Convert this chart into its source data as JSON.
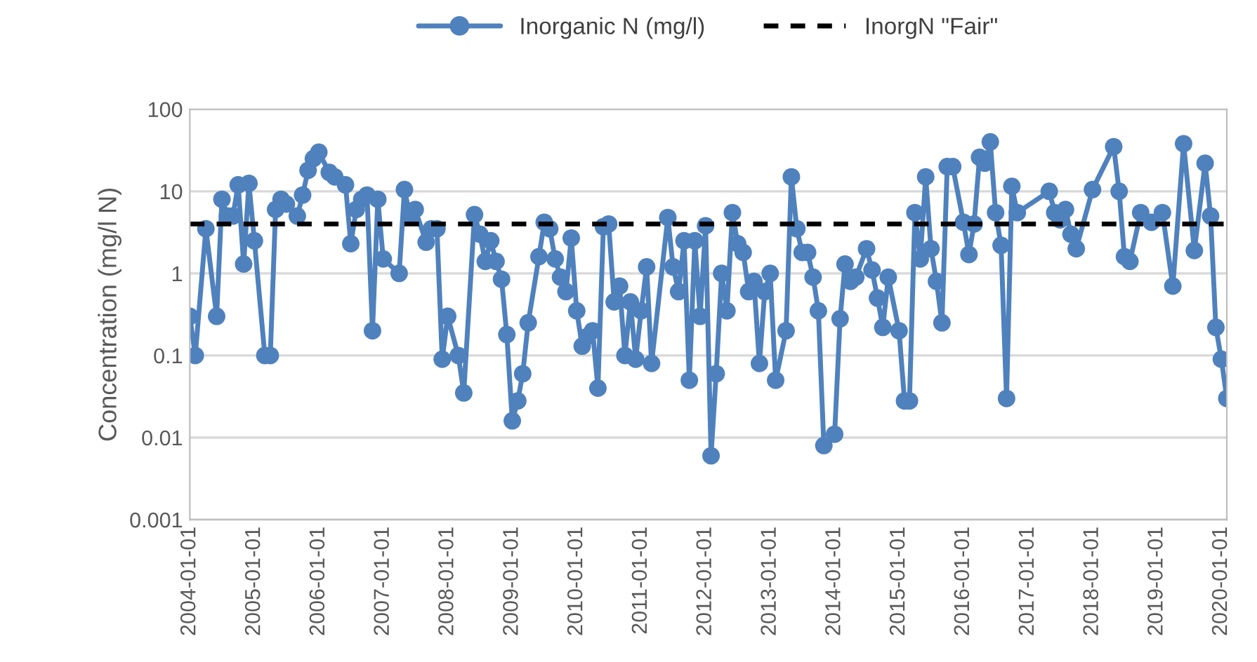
{
  "chart_data": {
    "type": "line",
    "ylabel": "Concentration (mg/l N)",
    "x": [
      "2004-01",
      "2004-02",
      "2004-04",
      "2004-06",
      "2004-07",
      "2004-08",
      "2004-09",
      "2004-10",
      "2004-11",
      "2004-12",
      "2005-01",
      "2005-03",
      "2005-04",
      "2005-05",
      "2005-06",
      "2005-07",
      "2005-09",
      "2005-10",
      "2005-11",
      "2005-12",
      "2006-01",
      "2006-03",
      "2006-04",
      "2006-06",
      "2006-07",
      "2006-08",
      "2006-09",
      "2006-10",
      "2006-11",
      "2006-12",
      "2007-01",
      "2007-04",
      "2007-05",
      "2007-06",
      "2007-07",
      "2007-09",
      "2007-10",
      "2007-11",
      "2007-12",
      "2008-01",
      "2008-03",
      "2008-04",
      "2008-06",
      "2008-07",
      "2008-08",
      "2008-09",
      "2008-10",
      "2008-11",
      "2008-12",
      "2009-01",
      "2009-02",
      "2009-03",
      "2009-04",
      "2009-06",
      "2009-07",
      "2009-08",
      "2009-09",
      "2009-10",
      "2009-11",
      "2009-12",
      "2010-01",
      "2010-02",
      "2010-03",
      "2010-04",
      "2010-05",
      "2010-06",
      "2010-07",
      "2010-08",
      "2010-09",
      "2010-10",
      "2010-11",
      "2010-12",
      "2011-01",
      "2011-02",
      "2011-03",
      "2011-06",
      "2011-07",
      "2011-08",
      "2011-09",
      "2011-10",
      "2011-11",
      "2011-12",
      "2012-01",
      "2012-02",
      "2012-03",
      "2012-04",
      "2012-05",
      "2012-06",
      "2012-07",
      "2012-08",
      "2012-09",
      "2012-10",
      "2012-11",
      "2012-12",
      "2013-01",
      "2013-02",
      "2013-04",
      "2013-05",
      "2013-06",
      "2013-07",
      "2013-08",
      "2013-09",
      "2013-10",
      "2013-11",
      "2014-01",
      "2014-02",
      "2014-03",
      "2014-04",
      "2014-05",
      "2014-07",
      "2014-08",
      "2014-09",
      "2014-10",
      "2014-11",
      "2015-01",
      "2015-02",
      "2015-03",
      "2015-04",
      "2015-05",
      "2015-06",
      "2015-07",
      "2015-08",
      "2015-09",
      "2015-10",
      "2015-11",
      "2016-01",
      "2016-02",
      "2016-03",
      "2016-04",
      "2016-05",
      "2016-06",
      "2016-07",
      "2016-08",
      "2016-09",
      "2016-10",
      "2016-11",
      "2017-05",
      "2017-06",
      "2017-07",
      "2017-08",
      "2017-09",
      "2017-10",
      "2018-01",
      "2018-05",
      "2018-06",
      "2018-07",
      "2018-08",
      "2018-10",
      "2018-12",
      "2019-02",
      "2019-04",
      "2019-06",
      "2019-08",
      "2019-10",
      "2019-11",
      "2019-12",
      "2020-01",
      "2020-02"
    ],
    "series": [
      {
        "name": "Inorganic N (mg/l)",
        "color": "#4f81bd",
        "values": [
          0.3,
          0.1,
          3.5,
          0.3,
          8,
          5,
          5,
          12,
          1.3,
          12.5,
          2.5,
          0.1,
          0.1,
          6,
          8,
          7,
          5,
          9,
          18,
          25,
          30,
          17,
          15,
          12,
          2.3,
          6,
          8,
          9,
          0.2,
          8,
          1.5,
          1,
          10.5,
          5,
          6,
          2.4,
          3.5,
          3.5,
          0.09,
          0.3,
          0.1,
          0.035,
          5.2,
          3,
          1.4,
          2.5,
          1.4,
          0.85,
          0.18,
          0.016,
          0.028,
          0.06,
          0.25,
          1.6,
          4.2,
          3.5,
          1.5,
          0.9,
          0.6,
          2.7,
          0.35,
          0.13,
          0.17,
          0.2,
          0.04,
          3.7,
          4,
          0.45,
          0.7,
          0.1,
          0.45,
          0.09,
          0.35,
          1.2,
          0.08,
          4.8,
          1.2,
          0.6,
          2.5,
          0.05,
          2.5,
          0.3,
          3.8,
          0.006,
          0.06,
          1,
          0.35,
          5.5,
          2.3,
          1.8,
          0.6,
          0.8,
          0.08,
          0.6,
          1,
          0.05,
          0.2,
          15,
          3.5,
          1.8,
          1.8,
          0.9,
          0.35,
          0.008,
          0.011,
          0.28,
          1.3,
          0.8,
          0.9,
          2,
          1.1,
          0.5,
          0.22,
          0.9,
          0.2,
          0.028,
          0.028,
          5.5,
          1.5,
          15,
          2,
          0.8,
          0.25,
          20,
          20,
          4.2,
          1.7,
          4,
          26,
          22,
          40,
          5.5,
          2.2,
          0.03,
          11.5,
          5.5,
          10,
          5.5,
          4.5,
          6,
          3,
          2,
          10.5,
          35,
          10,
          1.6,
          1.4,
          5.5,
          4.2,
          5.5,
          0.7,
          38,
          1.9,
          22,
          5,
          0.22,
          0.09,
          0.03
        ]
      }
    ],
    "ref_lines": [
      {
        "axis": "y",
        "value": 4,
        "label": "InorgN \"Fair\"",
        "color": "#000000",
        "line_style": "dashed"
      }
    ],
    "log": "y",
    "ylim": [
      0.001,
      100
    ],
    "yticks": [
      0.001,
      0.01,
      0.1,
      1,
      10,
      100
    ],
    "xlim": [
      "2004-01",
      "2020-02"
    ],
    "xticks": [
      "2004-01-01",
      "2005-01-01",
      "2006-01-01",
      "2007-01-01",
      "2008-01-01",
      "2009-01-01",
      "2010-01-01",
      "2011-01-01",
      "2012-01-01",
      "2013-01-01",
      "2014-01-01",
      "2015-01-01",
      "2016-01-01",
      "2017-01-01",
      "2018-01-01",
      "2019-01-01",
      "2020-01-01"
    ],
    "grid": "y",
    "legend": "top",
    "marker": "circle",
    "line_style": "solid"
  }
}
